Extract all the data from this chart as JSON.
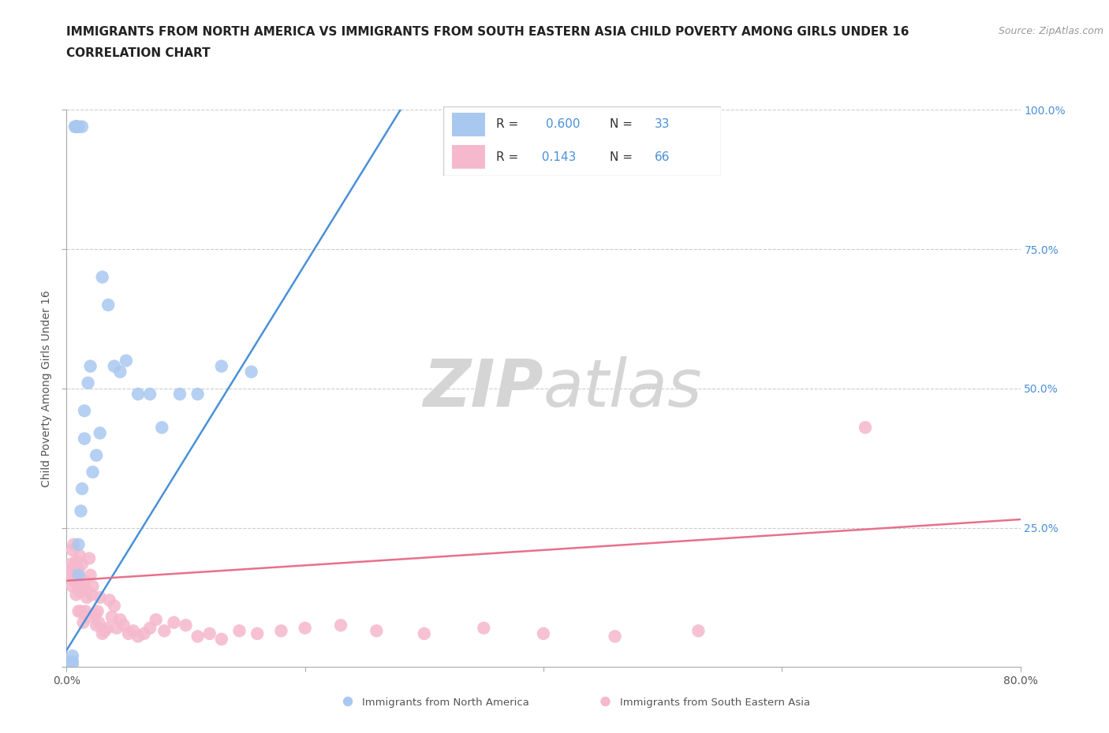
{
  "title": "IMMIGRANTS FROM NORTH AMERICA VS IMMIGRANTS FROM SOUTH EASTERN ASIA CHILD POVERTY AMONG GIRLS UNDER 16",
  "subtitle": "CORRELATION CHART",
  "source": "Source: ZipAtlas.com",
  "ylabel": "Child Poverty Among Girls Under 16",
  "xlim": [
    0.0,
    0.8
  ],
  "ylim": [
    0.0,
    1.0
  ],
  "blue_R": 0.6,
  "blue_N": 33,
  "pink_R": 0.143,
  "pink_N": 66,
  "blue_color": "#A8C8F0",
  "pink_color": "#F5B8CC",
  "blue_line_color": "#4A90D9",
  "pink_line_color": "#E8708A",
  "grid_color": "#CCCCCC",
  "watermark_zip": "ZIP",
  "watermark_atlas": "atlas",
  "watermark_color": "#D8D8D8",
  "legend_label_blue": "Immigrants from North America",
  "legend_label_pink": "Immigrants from South Eastern Asia",
  "blue_x": [
    0.005,
    0.005,
    0.005,
    0.007,
    0.008,
    0.008,
    0.008,
    0.009,
    0.01,
    0.01,
    0.01,
    0.012,
    0.013,
    0.013,
    0.015,
    0.015,
    0.018,
    0.02,
    0.022,
    0.025,
    0.028,
    0.03,
    0.035,
    0.04,
    0.045,
    0.05,
    0.06,
    0.07,
    0.08,
    0.095,
    0.11,
    0.13,
    0.155
  ],
  "blue_y": [
    0.005,
    0.01,
    0.02,
    0.97,
    0.97,
    0.97,
    0.97,
    0.97,
    0.97,
    0.165,
    0.22,
    0.28,
    0.32,
    0.97,
    0.41,
    0.46,
    0.51,
    0.54,
    0.35,
    0.38,
    0.42,
    0.7,
    0.65,
    0.54,
    0.53,
    0.55,
    0.49,
    0.49,
    0.43,
    0.49,
    0.49,
    0.54,
    0.53
  ],
  "pink_x": [
    0.002,
    0.003,
    0.004,
    0.005,
    0.005,
    0.006,
    0.006,
    0.007,
    0.008,
    0.008,
    0.009,
    0.01,
    0.01,
    0.011,
    0.011,
    0.012,
    0.013,
    0.013,
    0.014,
    0.015,
    0.016,
    0.016,
    0.017,
    0.018,
    0.019,
    0.02,
    0.021,
    0.022,
    0.024,
    0.025,
    0.026,
    0.027,
    0.028,
    0.03,
    0.032,
    0.034,
    0.036,
    0.038,
    0.04,
    0.042,
    0.045,
    0.048,
    0.052,
    0.056,
    0.06,
    0.065,
    0.07,
    0.075,
    0.082,
    0.09,
    0.1,
    0.11,
    0.12,
    0.13,
    0.145,
    0.16,
    0.18,
    0.2,
    0.23,
    0.26,
    0.3,
    0.35,
    0.4,
    0.46,
    0.53,
    0.67
  ],
  "pink_y": [
    0.165,
    0.175,
    0.185,
    0.145,
    0.21,
    0.155,
    0.22,
    0.165,
    0.13,
    0.19,
    0.15,
    0.1,
    0.175,
    0.135,
    0.2,
    0.1,
    0.145,
    0.185,
    0.08,
    0.155,
    0.14,
    0.1,
    0.125,
    0.09,
    0.195,
    0.165,
    0.13,
    0.145,
    0.095,
    0.075,
    0.1,
    0.08,
    0.125,
    0.06,
    0.065,
    0.07,
    0.12,
    0.09,
    0.11,
    0.07,
    0.085,
    0.075,
    0.06,
    0.065,
    0.055,
    0.06,
    0.07,
    0.085,
    0.065,
    0.08,
    0.075,
    0.055,
    0.06,
    0.05,
    0.065,
    0.06,
    0.065,
    0.07,
    0.075,
    0.065,
    0.06,
    0.07,
    0.06,
    0.055,
    0.065,
    0.43
  ],
  "blue_trend_x": [
    0.0,
    0.28
  ],
  "blue_trend_y": [
    0.03,
    1.0
  ],
  "pink_trend_x": [
    0.0,
    0.8
  ],
  "pink_trend_y": [
    0.155,
    0.265
  ],
  "title_fontsize": 11,
  "subtitle_fontsize": 11,
  "source_fontsize": 9,
  "axis_label_fontsize": 10,
  "tick_fontsize": 10
}
